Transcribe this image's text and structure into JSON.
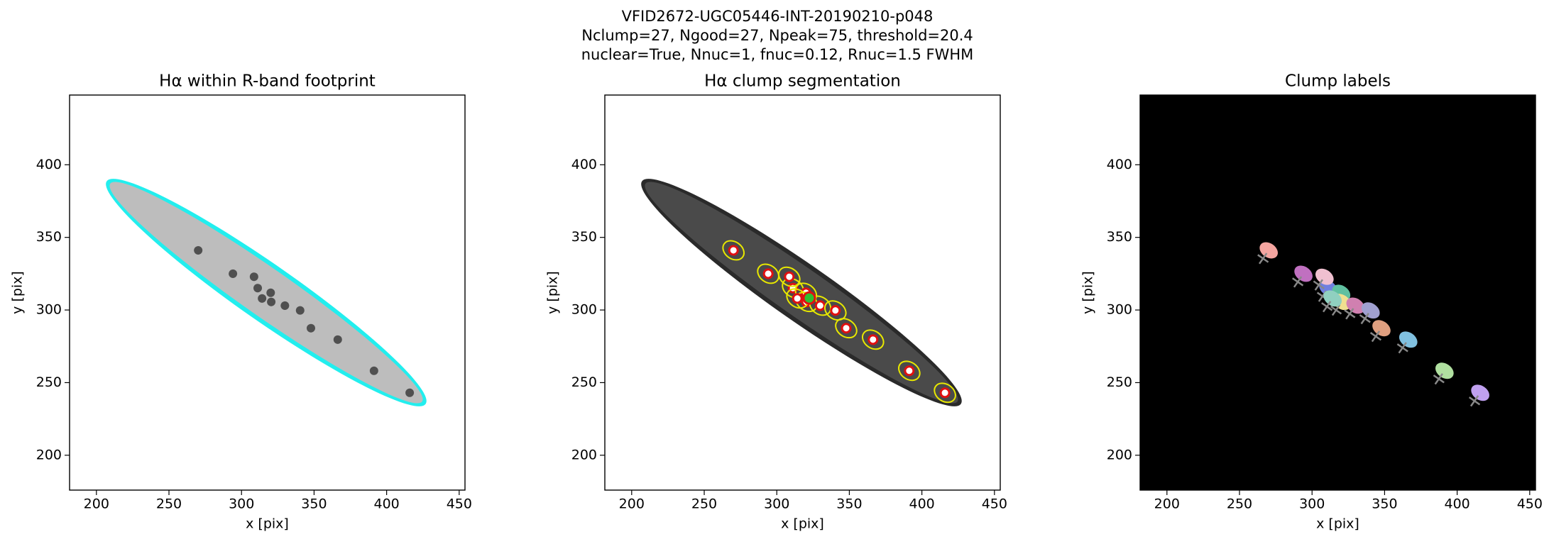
{
  "figure_title": [
    "VFID2672-UGC05446-INT-20190210-p048",
    "Nclump=27, Ngood=27, Npeak=75, threshold=20.4",
    "nuclear=True, Nnuc=1, fnuc=0.12, Rnuc=1.5 FWHM"
  ],
  "chart_data": [
    {
      "type": "image",
      "title": "Hα within R-band footprint",
      "xlabel": "x [pix]",
      "ylabel": "y [pix]",
      "xlim": [
        181.5,
        454
      ],
      "ylim": [
        176,
        448
      ],
      "xticks": [
        200,
        250,
        300,
        350,
        400,
        450
      ],
      "yticks": [
        200,
        250,
        300,
        350,
        400
      ]
    },
    {
      "type": "image",
      "title": "Hα clump segmentation",
      "xlabel": "x [pix]",
      "ylabel": "y [pix]",
      "xlim": [
        181.5,
        454
      ],
      "ylim": [
        176,
        448
      ],
      "xticks": [
        200,
        250,
        300,
        350,
        400,
        450
      ],
      "yticks": [
        200,
        250,
        300,
        350,
        400
      ]
    },
    {
      "type": "image",
      "title": "Clump labels",
      "xlabel": "x [pix]",
      "ylabel": "y [pix]",
      "xlim": [
        181.5,
        454
      ],
      "ylim": [
        176,
        448
      ],
      "xticks": [
        200,
        250,
        300,
        350,
        400,
        450
      ],
      "yticks": [
        200,
        250,
        300,
        350,
        400
      ]
    }
  ]
}
